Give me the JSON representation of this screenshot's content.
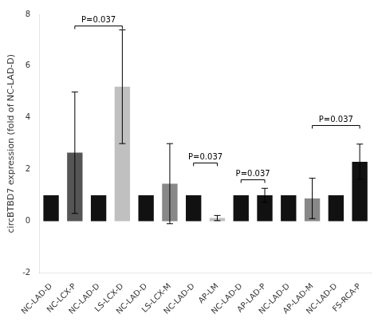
{
  "chart_data": {
    "type": "bar",
    "categories": [
      "NC-LAD-D",
      "NC-LCX-P",
      "NC-LAD-D",
      "LS-LCX-D",
      "NC-LAD-D",
      "LS-LCX-M",
      "NC-LAD-D",
      "AP-LM",
      "NC-LAD-D",
      "AP-LAD-P",
      "NC-LAD-D",
      "AP-LAD-M",
      "NC-LAD-D",
      "FS-RCA-P"
    ],
    "values": [
      1.0,
      2.65,
      1.0,
      5.2,
      1.0,
      1.45,
      1.0,
      0.12,
      1.0,
      1.0,
      1.0,
      0.88,
      1.0,
      2.3
    ],
    "errors": [
      0.0,
      2.35,
      0.0,
      2.2,
      0.0,
      1.55,
      0.0,
      0.1,
      0.0,
      0.27,
      0.0,
      0.78,
      0.0,
      0.68
    ],
    "colors": [
      "#111111",
      "#555555",
      "#111111",
      "#c0c0c0",
      "#111111",
      "#888888",
      "#111111",
      "#c0c0c0",
      "#111111",
      "#111111",
      "#111111",
      "#888888",
      "#111111",
      "#111111"
    ],
    "ylabel": "circBTBD7 expression (fold of NC-LAD-D)",
    "ylim": [
      -2,
      8
    ],
    "yticks": [
      -2,
      0,
      2,
      4,
      6,
      8
    ],
    "annotations": [
      {
        "x1": 1,
        "x2": 3,
        "y": 7.55,
        "label": "P=0.037"
      },
      {
        "x1": 6,
        "x2": 7,
        "y": 2.25,
        "label": "P=0.037"
      },
      {
        "x1": 8,
        "x2": 9,
        "y": 1.6,
        "label": "P=0.037"
      },
      {
        "x1": 11,
        "x2": 13,
        "y": 3.7,
        "label": "P=0.037"
      }
    ],
    "grid": false
  }
}
